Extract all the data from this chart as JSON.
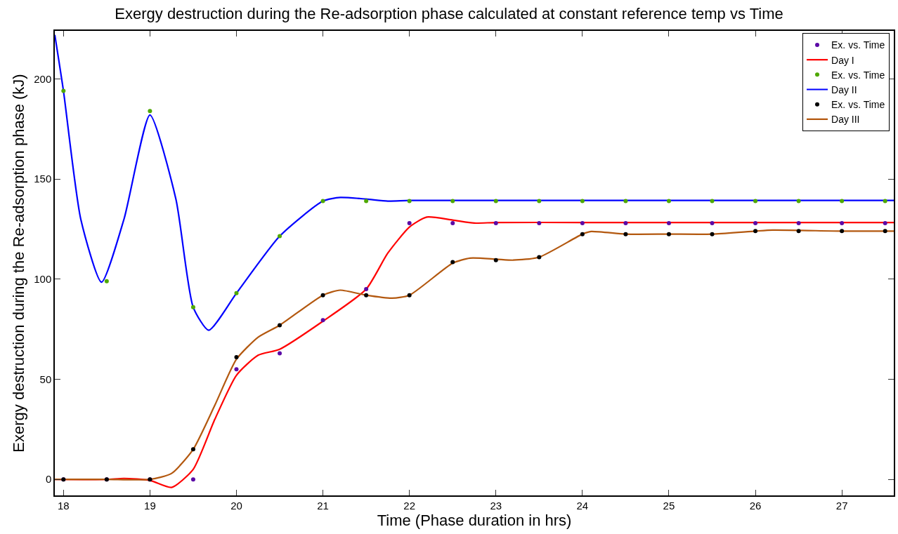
{
  "chart_data": {
    "type": "line",
    "title": "Exergy destruction during the Re-adsorption phase calculated at constant reference temp vs Time",
    "xlabel": "Time (Phase duration in hrs)",
    "ylabel": "Exergy destruction during the Re-adsorption phase (kJ)",
    "x": [
      18,
      18.5,
      19,
      19.5,
      20,
      20.5,
      21,
      21.5,
      22,
      22.5,
      23,
      23.5,
      24,
      24.5,
      25,
      25.5,
      26,
      26.5,
      27,
      27.5
    ],
    "series": [
      {
        "name": "Ex. vs. Time",
        "type": "scatter",
        "marker": "circle",
        "color": "#5b0aa6",
        "values": [
          0,
          0,
          0,
          0,
          55,
          63,
          79.5,
          95,
          128,
          128,
          128,
          128,
          128,
          128,
          128,
          128,
          128,
          128,
          128,
          128
        ]
      },
      {
        "name": "Day I",
        "color": "#ff0000",
        "x": [
          17.9,
          18.5,
          18.7,
          19,
          19.25,
          19.5,
          19.75,
          20,
          20.25,
          20.5,
          21,
          21.5,
          21.75,
          22,
          22.2,
          22.5,
          22.75,
          23,
          24,
          25,
          26,
          27,
          27.6
        ],
        "values": [
          0,
          0,
          0.5,
          -0.5,
          -4,
          5,
          30,
          52,
          62,
          65,
          79,
          95,
          113,
          126,
          131,
          129.5,
          128,
          128.3,
          128.3,
          128.3,
          128.3,
          128.3,
          128.3
        ]
      },
      {
        "name": "Ex. vs. Time",
        "type": "scatter",
        "marker": "circle",
        "color": "#4ea800",
        "values": [
          194,
          99,
          184,
          86,
          93,
          121.5,
          139,
          139,
          139,
          139,
          139,
          139,
          139,
          139,
          139,
          139,
          139,
          139,
          139,
          139
        ]
      },
      {
        "name": "Day II",
        "color": "#0000ff",
        "x": [
          17.9,
          18,
          18.2,
          18.44,
          18.7,
          19,
          19.3,
          19.5,
          19.68,
          20,
          20.5,
          21,
          21.2,
          21.5,
          21.75,
          22,
          23,
          24,
          25,
          26,
          27,
          27.6
        ],
        "values": [
          222,
          194,
          130,
          98.5,
          130,
          182,
          140,
          86,
          74.5,
          93,
          121.5,
          139,
          140.8,
          140,
          139,
          139.3,
          139.3,
          139.3,
          139.3,
          139.3,
          139.3,
          139.3
        ]
      },
      {
        "name": "Ex. vs. Time",
        "type": "scatter",
        "marker": "circle",
        "color": "#000000",
        "values": [
          0,
          0,
          0,
          15,
          61,
          77,
          92,
          92,
          92,
          108.5,
          109.5,
          111,
          122.5,
          122.5,
          122.5,
          122.5,
          124,
          124,
          124,
          124
        ]
      },
      {
        "name": "Day III",
        "color": "#b3580f",
        "x": [
          17.9,
          18.5,
          19,
          19.25,
          19.5,
          19.75,
          20,
          20.25,
          20.5,
          21,
          21.2,
          21.5,
          21.8,
          22,
          22.5,
          22.7,
          23,
          23.2,
          23.5,
          24,
          24.1,
          24.5,
          25,
          25.5,
          26,
          26.2,
          27,
          27.6
        ],
        "values": [
          0,
          0,
          0,
          3,
          15,
          37,
          60,
          71,
          77,
          92,
          94.5,
          92,
          90.5,
          92,
          108,
          110.5,
          110,
          109.5,
          111,
          122.5,
          123.8,
          122.5,
          122.5,
          122.5,
          124,
          124.5,
          124,
          124
        ]
      }
    ],
    "xlim": [
      17.9,
      27.6
    ],
    "ylim": [
      -8,
      224
    ],
    "xticks": [
      18,
      19,
      20,
      21,
      22,
      23,
      24,
      25,
      26,
      27
    ],
    "yticks": [
      0,
      50,
      100,
      150,
      200
    ],
    "legend": "top right"
  }
}
